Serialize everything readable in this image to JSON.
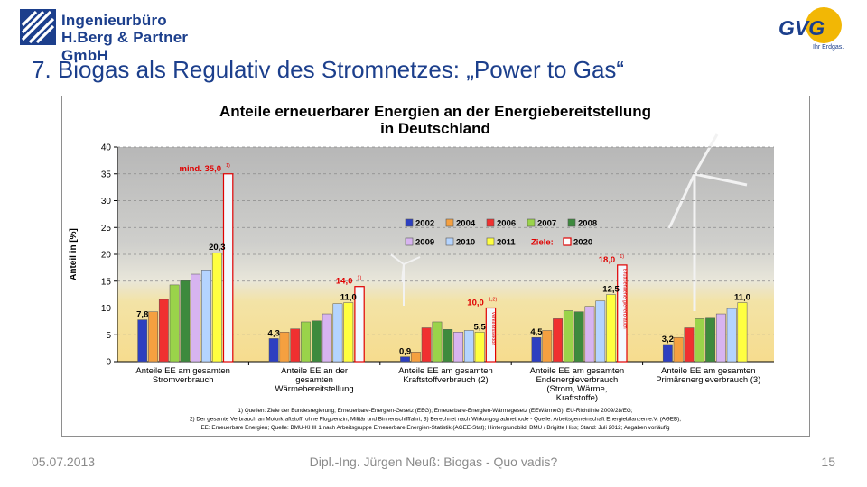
{
  "header": {
    "company_line1": "Ingenieurbüro",
    "company_line2": "H.Berg & Partner GmbH",
    "right_logo_text": "GVG",
    "right_logo_sub": "Ihr Erdgas.",
    "title": "7. Biogas als Regulativ des Stromnetzes: „Power to Gas“"
  },
  "footer": {
    "date": "05.07.2013",
    "center": "Dipl.-Ing. Jürgen Neuß: Biogas - Quo vadis?",
    "page": "15"
  },
  "colors": {
    "brand_blue": "#1c3f8c",
    "target_label": "#e00000"
  },
  "chart_data": {
    "type": "bar",
    "title_lines": [
      "Anteile erneuerbarer Energien an der Energiebereitstellung",
      "in Deutschland"
    ],
    "ylabel": "Anteil in [%]",
    "ylim": [
      0,
      40
    ],
    "yticks": [
      0,
      5,
      10,
      15,
      20,
      25,
      30,
      35,
      40
    ],
    "grid": true,
    "legend_placement": "center",
    "legend_target_prefix": "Ziele:",
    "series": [
      {
        "name": "2002",
        "color": "#2d3fc0"
      },
      {
        "name": "2004",
        "color": "#f5a040"
      },
      {
        "name": "2006",
        "color": "#f03030"
      },
      {
        "name": "2007",
        "color": "#9ad34a"
      },
      {
        "name": "2008",
        "color": "#3d8a3d"
      },
      {
        "name": "2009",
        "color": "#d7b4f0"
      },
      {
        "name": "2010",
        "color": "#b4d4ff"
      },
      {
        "name": "2011",
        "color": "#ffff40"
      },
      {
        "name": "2020",
        "color": "#ffffff",
        "is_target": true
      }
    ],
    "categories": [
      {
        "label_lines": [
          "Anteile EE am gesamten",
          "Stromverbrauch"
        ],
        "values": [
          7.8,
          9.3,
          11.6,
          14.3,
          15.1,
          16.3,
          17.1,
          20.3,
          35.0
        ],
        "first_label": "7,8",
        "last_label": "20,3",
        "target_label": "mind. 35,0",
        "target_note": "1)"
      },
      {
        "label_lines": [
          "Anteile EE an der",
          "gesamten",
          "Wärmebereitstellung"
        ],
        "values": [
          4.3,
          5.5,
          6.1,
          7.4,
          7.6,
          8.9,
          10.8,
          11.0,
          14.0
        ],
        "first_label": "4,3",
        "last_label": "11,0",
        "target_label": "14,0",
        "target_note": "1)"
      },
      {
        "label_lines": [
          "Anteile EE am gesamten",
          "Kraftstoffverbrauch (2)"
        ],
        "values": [
          0.9,
          1.8,
          6.3,
          7.4,
          6.0,
          5.5,
          5.8,
          5.5,
          10.0
        ],
        "first_label": "0,9",
        "last_label": "5,5",
        "target_label": "10,0",
        "target_note": "1,2)",
        "target_bar_text": "Verkehrssektor"
      },
      {
        "label_lines": [
          "Anteile EE am gesamten",
          "Endenergieverbrauch",
          "(Strom, Wärme,",
          "Kraftstoffe)"
        ],
        "values": [
          4.5,
          5.8,
          8.0,
          9.5,
          9.3,
          10.3,
          11.3,
          12.5,
          18.0
        ],
        "first_label": "4,5",
        "last_label": "12,5",
        "target_label": "18,0",
        "target_note": "1)",
        "target_bar_text": "Bruttoendenergieverbrauch"
      },
      {
        "label_lines": [
          "Anteile EE am gesamten",
          "Primärenergieverbrauch (3)"
        ],
        "values": [
          3.2,
          4.5,
          6.3,
          8.0,
          8.1,
          8.9,
          9.9,
          11.0,
          null
        ],
        "first_label": "3,2",
        "last_label": "11,0"
      }
    ],
    "footnotes": [
      "1) Quellen: Ziele der Bundesregierung; Erneuerbare-Energien-Gesetz (EEG); Erneuerbare-Energien-Wärmegesetz (EEWärmeG), EU-Richtlinie 2009/28/EG;",
      "2) Der gesamte Verbrauch an Motorkraftstoff, ohne Flugbenzin, Militär und Binnenschifffahrt; 3) Berechnet nach Wirkungsgradmethode - Quelle: Arbeitsgemeinschaft Energiebilanzen e.V. (AGEB);",
      "EE: Erneuerbare Energien; Quelle: BMU-KI III 1 nach Arbeitsgruppe Erneuerbare Energien-Statistik (AGEE-Stat); Hintergrundbild: BMU / Brigitte Hiss; Stand: Juli 2012; Angaben vorläufig"
    ]
  }
}
